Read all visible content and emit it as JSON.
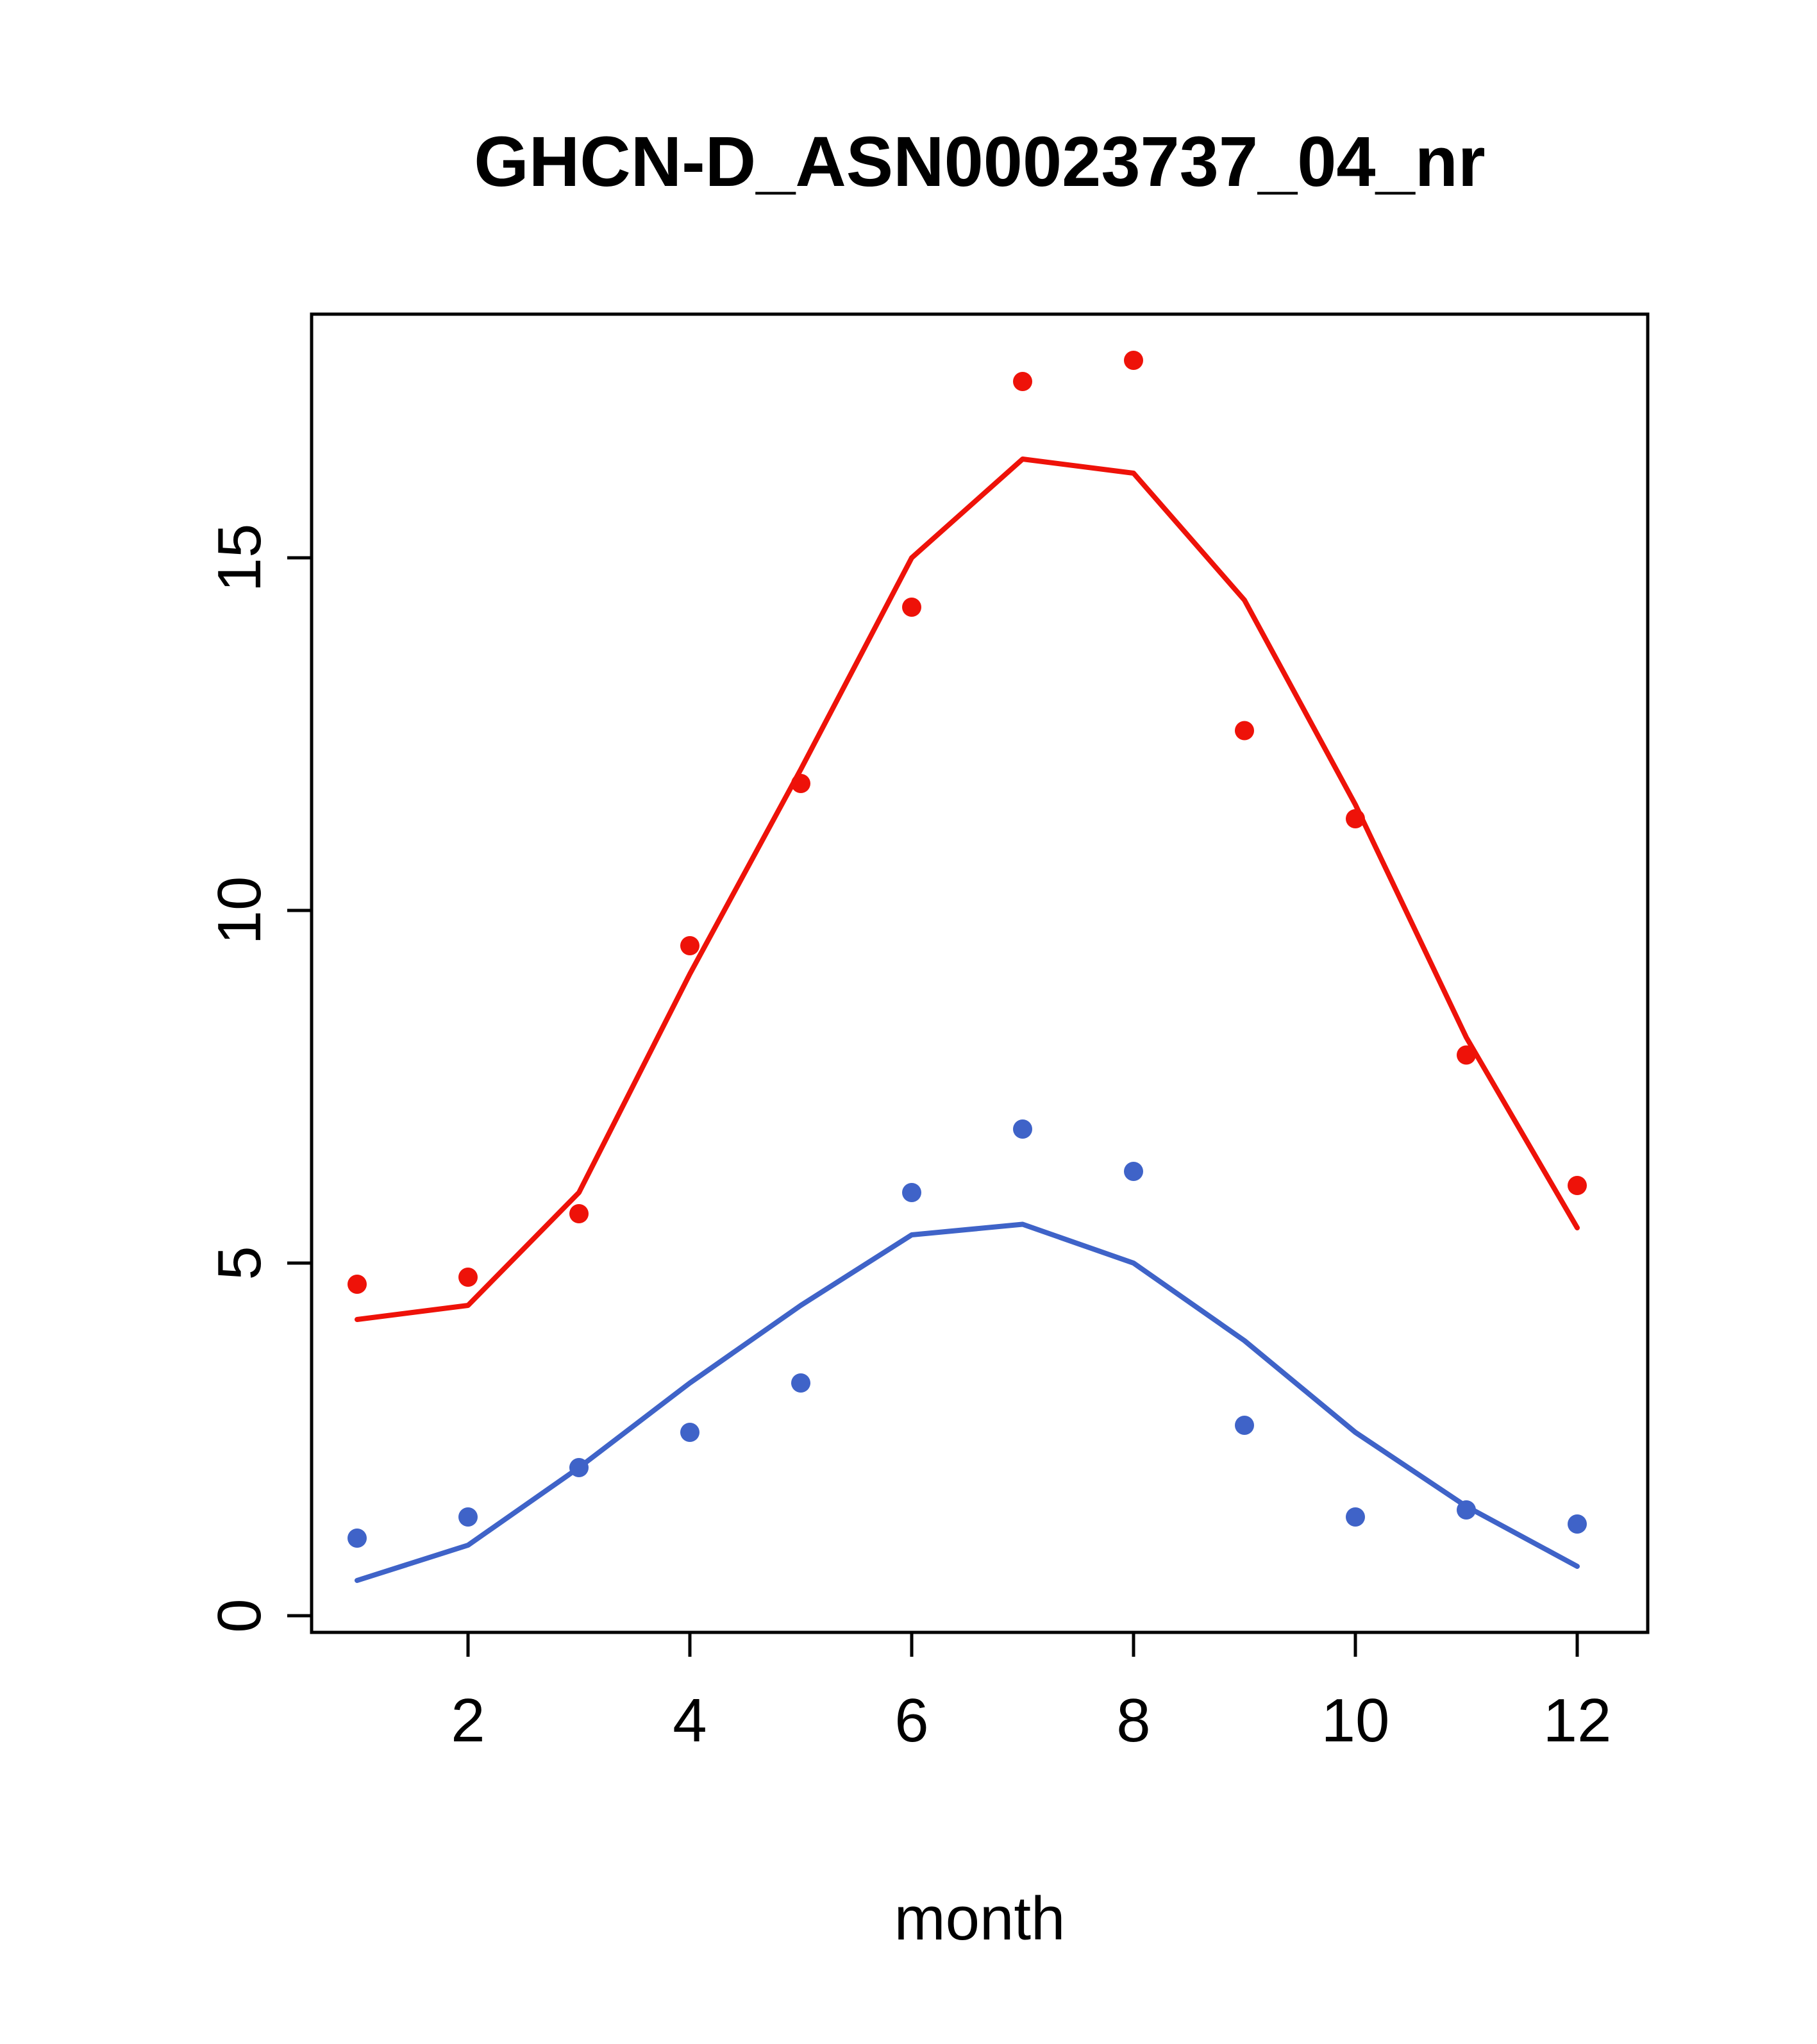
{
  "chart_data": {
    "type": "scatter",
    "title": "GHCN-D_ASN00023737_04_nr",
    "xlabel": "month",
    "ylabel": "",
    "xlim": [
      0.56,
      12.64
    ],
    "ylim": [
      -0.25,
      18.45
    ],
    "x_ticks": [
      2,
      4,
      6,
      8,
      10,
      12
    ],
    "y_ticks": [
      0,
      5,
      10,
      15
    ],
    "grid": false,
    "legend": null,
    "x": [
      1,
      2,
      3,
      4,
      5,
      6,
      7,
      8,
      9,
      10,
      11,
      12
    ],
    "series": [
      {
        "name": "red-line",
        "render": "line",
        "color": "#ee1209",
        "values": [
          4.2,
          4.4,
          6.0,
          9.1,
          12.0,
          15.0,
          16.4,
          16.2,
          14.4,
          11.5,
          8.2,
          5.5
        ]
      },
      {
        "name": "blue-line",
        "render": "line",
        "color": "#3f63c8",
        "values": [
          0.5,
          1.0,
          2.1,
          3.3,
          4.4,
          5.4,
          5.55,
          5.0,
          3.9,
          2.6,
          1.55,
          0.7
        ]
      },
      {
        "name": "red-points",
        "render": "points",
        "color": "#ee1209",
        "values": [
          4.7,
          4.8,
          5.7,
          9.5,
          11.8,
          14.3,
          17.5,
          17.8,
          12.55,
          11.3,
          7.95,
          6.1
        ]
      },
      {
        "name": "blue-points",
        "render": "points",
        "color": "#3f63c8",
        "values": [
          1.1,
          1.4,
          2.1,
          2.6,
          3.3,
          6.0,
          6.9,
          6.3,
          2.7,
          1.4,
          1.5,
          1.3
        ]
      }
    ]
  }
}
